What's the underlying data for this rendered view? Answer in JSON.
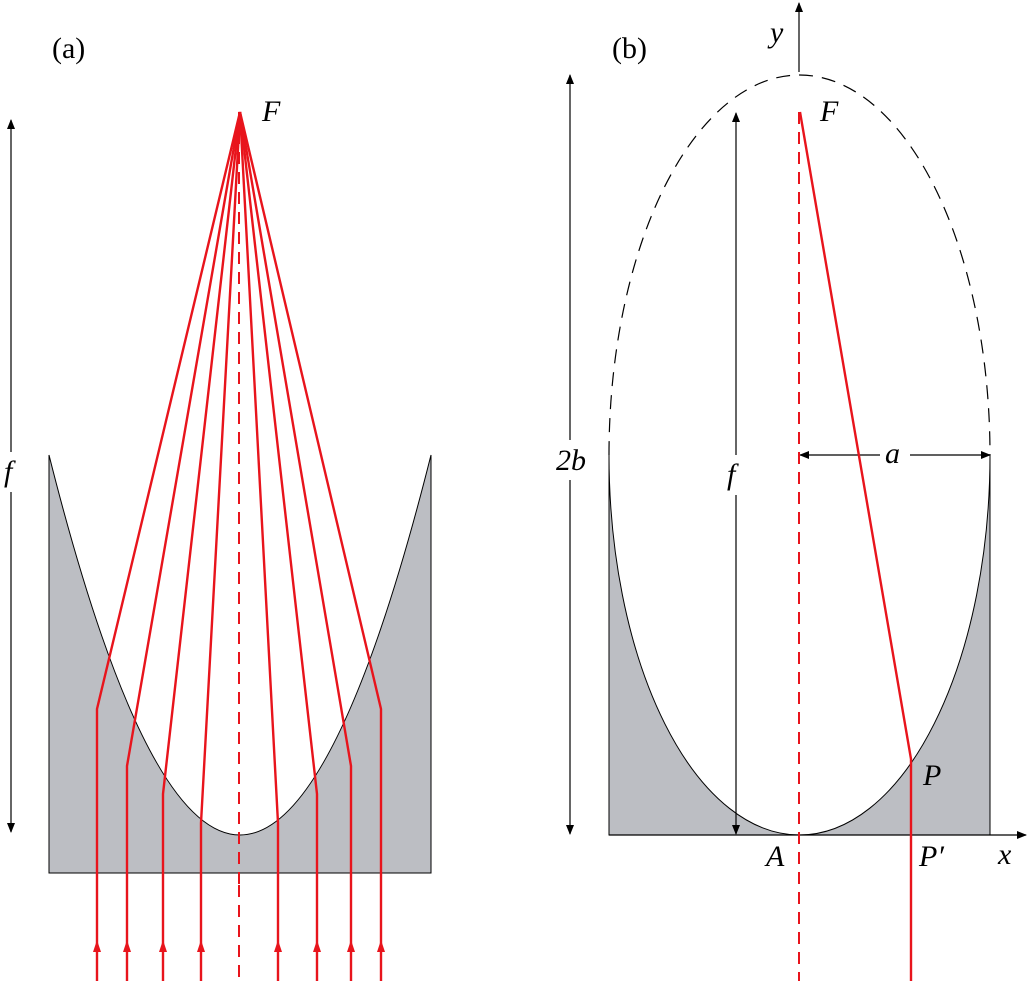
{
  "panel_a": {
    "label": "(a)",
    "focus_label": "F",
    "focal_length_label": "f"
  },
  "panel_b": {
    "label": "(b)",
    "focus_label": "F",
    "focal_length_label": "f",
    "height_label": "2b",
    "semi_axis_label": "a",
    "point_P_label": "P",
    "point_P_prime_label": "P′",
    "vertex_label": "A",
    "x_axis_label": "x",
    "y_axis_label": "y"
  },
  "colors": {
    "ray": "#e8141c",
    "fill": "#bcbec3",
    "ink": "#000000"
  }
}
